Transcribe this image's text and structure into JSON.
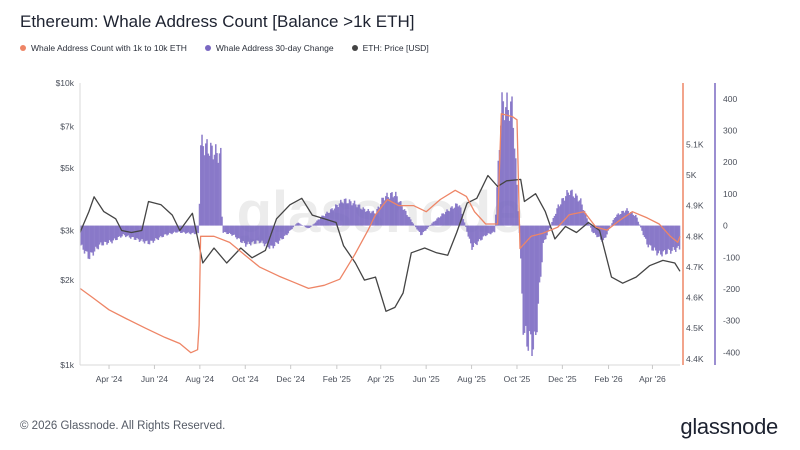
{
  "chart_title": "Ethereum: Whale Address Count [Balance >1k ETH]",
  "legend": [
    {
      "label": "Whale Address Count with 1k to 10k ETH",
      "color": "#ee8566"
    },
    {
      "label": "Whale Address 30-day Change",
      "color": "#7a68c2"
    },
    {
      "label": "ETH: Price [USD]",
      "color": "#444444"
    }
  ],
  "footer": "© 2026 Glassnode. All Rights Reserved.",
  "logo": "glassnode",
  "watermark": "glassnode",
  "chart_data": {
    "type": "line",
    "x_tick_labels": [
      "Apr '24",
      "Jun '24",
      "Aug '24",
      "Oct '24",
      "Dec '24",
      "Feb '25",
      "Apr '25",
      "Jun '25",
      "Aug '25",
      "Oct '25",
      "Dec '25",
      "Feb '26",
      "Apr '26"
    ],
    "x_range": [
      "2024-02-22",
      "2026-05-08"
    ],
    "left_axis": {
      "label": "ETH: Price [USD]",
      "scale": "log",
      "range": [
        1000,
        10000
      ],
      "ticks": [
        "$1k",
        "$2k",
        "$3k",
        "$5k",
        "$7k",
        "$10k"
      ],
      "tick_values": [
        1000,
        2000,
        3000,
        5000,
        7000,
        10000
      ]
    },
    "right_axis_1": {
      "label": "Whale Address Count",
      "range": [
        4.38,
        5.3
      ],
      "ticks": [
        "4.4K",
        "4.5K",
        "4.6K",
        "4.7K",
        "4.8K",
        "4.9K",
        "5K",
        "5.1K"
      ],
      "tick_values": [
        4.4,
        4.5,
        4.6,
        4.7,
        4.8,
        4.9,
        5.0,
        5.1
      ]
    },
    "right_axis_2": {
      "label": "30-day Change",
      "range": [
        -440,
        450
      ],
      "ticks": [
        "-400",
        "-300",
        "-200",
        "-100",
        "0",
        "100",
        "200",
        "300",
        "400"
      ],
      "tick_values": [
        -400,
        -300,
        -200,
        -100,
        0,
        100,
        200,
        300,
        400
      ]
    },
    "grid": false,
    "legend_position": "top-left",
    "series": [
      {
        "name": "ETH: Price [USD]",
        "axis": "left",
        "color": "#444444",
        "points": [
          [
            "2024-02-22",
            2950
          ],
          [
            "2024-03-05",
            3500
          ],
          [
            "2024-03-12",
            3950
          ],
          [
            "2024-03-25",
            3500
          ],
          [
            "2024-04-10",
            3300
          ],
          [
            "2024-04-18",
            3000
          ],
          [
            "2024-05-01",
            2950
          ],
          [
            "2024-05-15",
            3000
          ],
          [
            "2024-05-24",
            3800
          ],
          [
            "2024-06-10",
            3700
          ],
          [
            "2024-06-25",
            3400
          ],
          [
            "2024-07-05",
            3000
          ],
          [
            "2024-07-22",
            3450
          ],
          [
            "2024-08-05",
            2300
          ],
          [
            "2024-08-20",
            2600
          ],
          [
            "2024-09-06",
            2300
          ],
          [
            "2024-09-25",
            2600
          ],
          [
            "2024-10-10",
            2400
          ],
          [
            "2024-10-28",
            2550
          ],
          [
            "2024-11-12",
            3300
          ],
          [
            "2024-11-30",
            3700
          ],
          [
            "2024-12-16",
            3900
          ],
          [
            "2024-12-30",
            3400
          ],
          [
            "2025-01-15",
            3300
          ],
          [
            "2025-01-31",
            3200
          ],
          [
            "2025-02-10",
            2650
          ],
          [
            "2025-02-26",
            2300
          ],
          [
            "2025-03-10",
            2000
          ],
          [
            "2025-03-25",
            2050
          ],
          [
            "2025-04-08",
            1550
          ],
          [
            "2025-04-20",
            1600
          ],
          [
            "2025-05-01",
            1800
          ],
          [
            "2025-05-12",
            2500
          ],
          [
            "2025-05-30",
            2600
          ],
          [
            "2025-06-15",
            2500
          ],
          [
            "2025-06-30",
            2450
          ],
          [
            "2025-07-12",
            2950
          ],
          [
            "2025-07-26",
            3750
          ],
          [
            "2025-08-08",
            3900
          ],
          [
            "2025-08-23",
            4700
          ],
          [
            "2025-09-05",
            4300
          ],
          [
            "2025-09-17",
            4500
          ],
          [
            "2025-10-06",
            4550
          ],
          [
            "2025-10-11",
            3800
          ],
          [
            "2025-10-26",
            4050
          ],
          [
            "2025-11-08",
            3500
          ],
          [
            "2025-11-21",
            2800
          ],
          [
            "2025-12-05",
            3100
          ],
          [
            "2025-12-20",
            2950
          ],
          [
            "2026-01-05",
            3200
          ],
          [
            "2026-01-20",
            3000
          ],
          [
            "2026-02-05",
            2050
          ],
          [
            "2026-02-20",
            1950
          ],
          [
            "2026-03-10",
            2050
          ],
          [
            "2026-03-28",
            2250
          ],
          [
            "2026-04-15",
            2350
          ],
          [
            "2026-05-01",
            2300
          ],
          [
            "2026-05-08",
            2150
          ]
        ]
      },
      {
        "name": "Whale Address Count with 1k to 10k ETH",
        "axis": "right_1",
        "color": "#ee8566",
        "points": [
          [
            "2024-02-22",
            4.63
          ],
          [
            "2024-03-10",
            4.6
          ],
          [
            "2024-04-01",
            4.56
          ],
          [
            "2024-04-25",
            4.53
          ],
          [
            "2024-05-20",
            4.5
          ],
          [
            "2024-06-15",
            4.47
          ],
          [
            "2024-07-05",
            4.45
          ],
          [
            "2024-07-20",
            4.42
          ],
          [
            "2024-07-29",
            4.43
          ],
          [
            "2024-07-31",
            4.51
          ],
          [
            "2024-08-02",
            4.8
          ],
          [
            "2024-08-20",
            4.8
          ],
          [
            "2024-09-10",
            4.78
          ],
          [
            "2024-09-30",
            4.74
          ],
          [
            "2024-10-20",
            4.7
          ],
          [
            "2024-11-15",
            4.67
          ],
          [
            "2024-12-05",
            4.65
          ],
          [
            "2024-12-25",
            4.63
          ],
          [
            "2025-01-15",
            4.64
          ],
          [
            "2025-02-05",
            4.66
          ],
          [
            "2025-02-25",
            4.74
          ],
          [
            "2025-03-15",
            4.82
          ],
          [
            "2025-03-25",
            4.87
          ],
          [
            "2025-04-10",
            4.92
          ],
          [
            "2025-04-25",
            4.9
          ],
          [
            "2025-05-15",
            4.9
          ],
          [
            "2025-06-01",
            4.88
          ],
          [
            "2025-06-20",
            4.92
          ],
          [
            "2025-07-10",
            4.95
          ],
          [
            "2025-07-25",
            4.93
          ],
          [
            "2025-08-05",
            4.88
          ],
          [
            "2025-08-20",
            4.84
          ],
          [
            "2025-09-05",
            4.84
          ],
          [
            "2025-09-10",
            5.2
          ],
          [
            "2025-09-25",
            5.19
          ],
          [
            "2025-10-01",
            5.18
          ],
          [
            "2025-10-05",
            4.76
          ],
          [
            "2025-10-20",
            4.8
          ],
          [
            "2025-11-05",
            4.81
          ],
          [
            "2025-11-25",
            4.83
          ],
          [
            "2025-12-10",
            4.87
          ],
          [
            "2025-12-30",
            4.88
          ],
          [
            "2026-01-15",
            4.83
          ],
          [
            "2026-01-30",
            4.82
          ],
          [
            "2026-02-15",
            4.85
          ],
          [
            "2026-03-05",
            4.88
          ],
          [
            "2026-03-25",
            4.86
          ],
          [
            "2026-04-10",
            4.84
          ],
          [
            "2026-04-25",
            4.8
          ],
          [
            "2026-05-05",
            4.78
          ],
          [
            "2026-05-08",
            4.8
          ]
        ]
      },
      {
        "name": "Whale Address 30-day Change",
        "axis": "right_2",
        "type": "bar",
        "color": "#7a68c2",
        "points": [
          [
            "2024-02-22",
            -60
          ],
          [
            "2024-03-05",
            -100
          ],
          [
            "2024-03-20",
            -60
          ],
          [
            "2024-04-05",
            -50
          ],
          [
            "2024-04-20",
            -30
          ],
          [
            "2024-05-10",
            -45
          ],
          [
            "2024-05-25",
            -55
          ],
          [
            "2024-06-15",
            -30
          ],
          [
            "2024-07-01",
            -20
          ],
          [
            "2024-07-20",
            -25
          ],
          [
            "2024-07-31",
            -25
          ],
          [
            "2024-08-01",
            260
          ],
          [
            "2024-08-15",
            240
          ],
          [
            "2024-08-29",
            220
          ],
          [
            "2024-08-31",
            -20
          ],
          [
            "2024-09-15",
            -30
          ],
          [
            "2024-10-01",
            -60
          ],
          [
            "2024-10-20",
            -50
          ],
          [
            "2024-11-05",
            -70
          ],
          [
            "2024-11-25",
            -30
          ],
          [
            "2024-12-10",
            10
          ],
          [
            "2024-12-25",
            -10
          ],
          [
            "2025-01-10",
            25
          ],
          [
            "2025-01-25",
            50
          ],
          [
            "2025-02-10",
            80
          ],
          [
            "2025-02-25",
            70
          ],
          [
            "2025-03-10",
            50
          ],
          [
            "2025-03-25",
            40
          ],
          [
            "2025-04-05",
            90
          ],
          [
            "2025-04-20",
            100
          ],
          [
            "2025-05-05",
            40
          ],
          [
            "2025-05-25",
            -30
          ],
          [
            "2025-06-10",
            10
          ],
          [
            "2025-06-25",
            40
          ],
          [
            "2025-07-15",
            70
          ],
          [
            "2025-08-01",
            -70
          ],
          [
            "2025-08-20",
            -30
          ],
          [
            "2025-09-01",
            -20
          ],
          [
            "2025-09-10",
            380
          ],
          [
            "2025-09-25",
            370
          ],
          [
            "2025-10-04",
            -10
          ],
          [
            "2025-10-10",
            -350
          ],
          [
            "2025-10-25",
            -380
          ],
          [
            "2025-11-05",
            -60
          ],
          [
            "2025-11-25",
            60
          ],
          [
            "2025-12-10",
            110
          ],
          [
            "2025-12-25",
            80
          ],
          [
            "2026-01-10",
            -20
          ],
          [
            "2026-01-25",
            -50
          ],
          [
            "2026-02-10",
            30
          ],
          [
            "2026-02-25",
            50
          ],
          [
            "2026-03-10",
            30
          ],
          [
            "2026-03-25",
            -60
          ],
          [
            "2026-04-10",
            -90
          ],
          [
            "2026-04-25",
            -80
          ],
          [
            "2026-05-08",
            -70
          ]
        ]
      }
    ]
  }
}
